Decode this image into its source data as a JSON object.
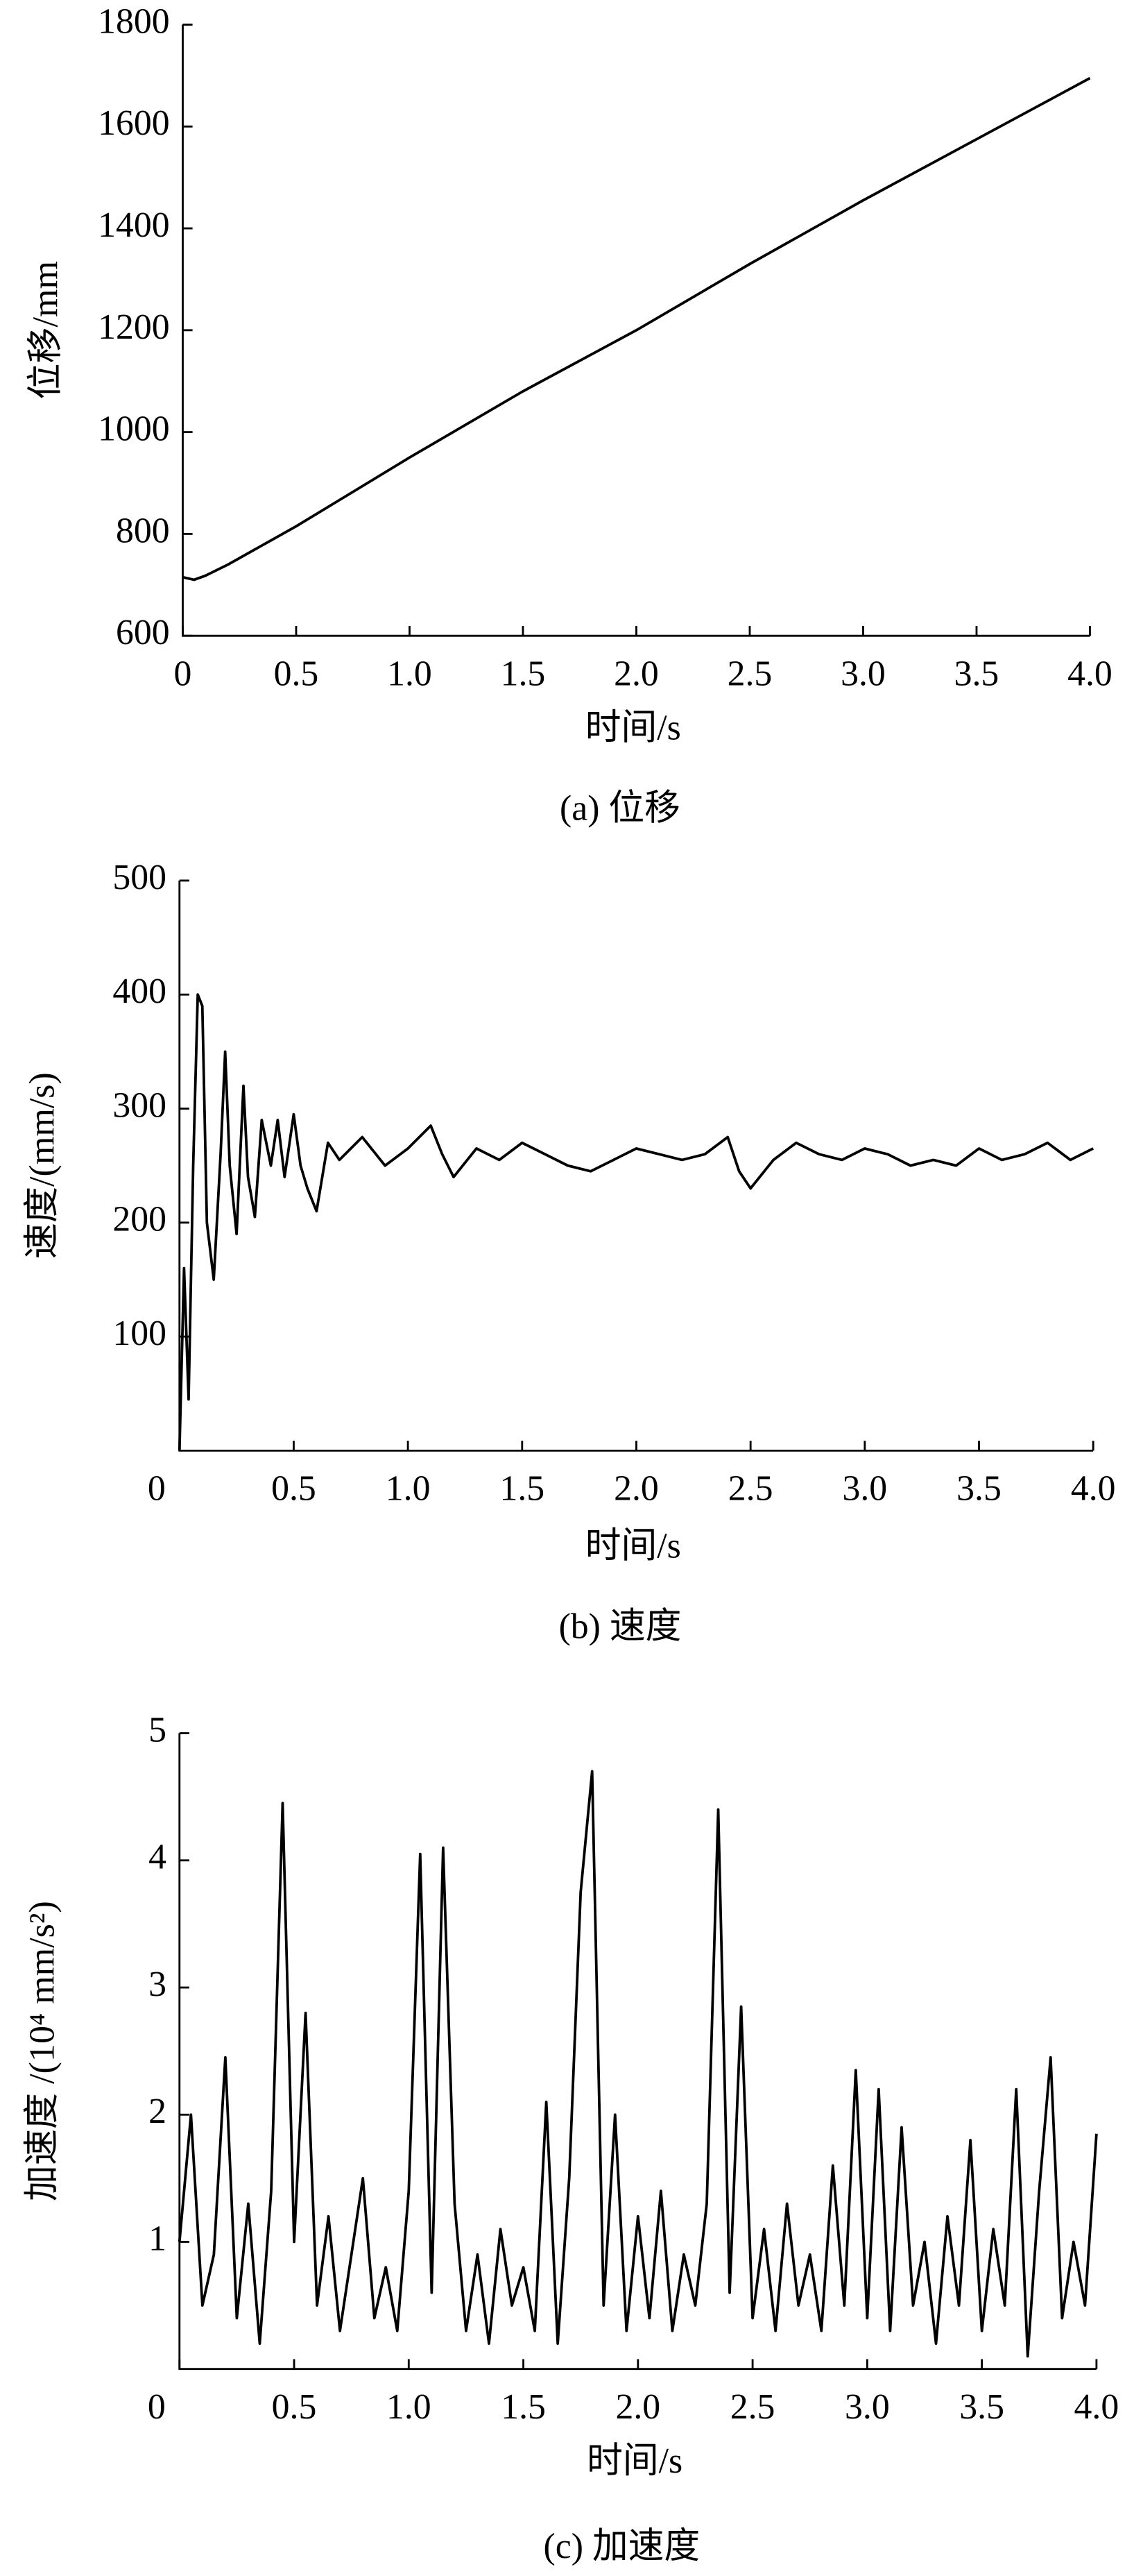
{
  "chart_data": [
    {
      "type": "line",
      "caption": "(a)  位移",
      "xlabel": "时间/s",
      "ylabel": "位移/mm",
      "color": "#000000",
      "x": [
        0,
        0.05,
        0.1,
        0.2,
        0.3,
        0.5,
        1.0,
        1.5,
        2.0,
        2.5,
        3.0,
        3.5,
        4.0
      ],
      "values": [
        715,
        710,
        718,
        740,
        765,
        815,
        950,
        1080,
        1200,
        1330,
        1455,
        1575,
        1695
      ],
      "xlim": [
        0,
        4
      ],
      "ylim": [
        600,
        1800
      ],
      "xticks": [
        0,
        0.5,
        {
          "value": 1,
          "label": "1.0"
        },
        1.5,
        {
          "value": 2,
          "label": "2.0"
        },
        2.5,
        {
          "value": 3,
          "label": "3.0"
        },
        3.5,
        {
          "value": 4,
          "label": "4.0"
        }
      ],
      "yticks": [
        600,
        800,
        1000,
        1200,
        1400,
        1600,
        1800
      ]
    },
    {
      "type": "line",
      "caption": "(b)  速度",
      "xlabel": "时间/s",
      "ylabel": "速度/(mm/s)",
      "color": "#000000",
      "x": [
        0,
        0.02,
        0.04,
        0.06,
        0.08,
        0.1,
        0.12,
        0.15,
        0.18,
        0.2,
        0.22,
        0.25,
        0.28,
        0.3,
        0.33,
        0.36,
        0.4,
        0.43,
        0.46,
        0.5,
        0.53,
        0.56,
        0.6,
        0.65,
        0.7,
        0.8,
        0.9,
        1.0,
        1.1,
        1.15,
        1.2,
        1.3,
        1.4,
        1.5,
        1.6,
        1.7,
        1.8,
        1.9,
        2.0,
        2.1,
        2.2,
        2.3,
        2.4,
        2.45,
        2.5,
        2.6,
        2.7,
        2.8,
        2.9,
        3.0,
        3.1,
        3.2,
        3.3,
        3.4,
        3.5,
        3.6,
        3.7,
        3.8,
        3.9,
        4.0
      ],
      "values": [
        0,
        160,
        45,
        250,
        400,
        390,
        200,
        150,
        260,
        350,
        250,
        190,
        320,
        240,
        205,
        290,
        250,
        290,
        240,
        295,
        250,
        230,
        210,
        270,
        255,
        275,
        250,
        265,
        285,
        260,
        240,
        265,
        255,
        270,
        260,
        250,
        245,
        255,
        265,
        260,
        255,
        260,
        275,
        245,
        230,
        255,
        270,
        260,
        255,
        265,
        260,
        250,
        255,
        250,
        265,
        255,
        260,
        270,
        255,
        265
      ],
      "xlim": [
        0,
        4
      ],
      "ylim": [
        0,
        500
      ],
      "xticks": [
        0,
        0.5,
        {
          "value": 1,
          "label": "1.0"
        },
        1.5,
        {
          "value": 2,
          "label": "2.0"
        },
        2.5,
        {
          "value": 3,
          "label": "3.0"
        },
        3.5,
        {
          "value": 4,
          "label": "4.0"
        }
      ],
      "yticks": [
        100,
        200,
        300,
        400,
        500
      ]
    },
    {
      "type": "line",
      "caption": "(c)  加速度",
      "xlabel": "时间/s",
      "ylabel": "加速度 /(10⁴ mm/s²)",
      "color": "#000000",
      "x": [
        0,
        0.05,
        0.1,
        0.15,
        0.2,
        0.25,
        0.3,
        0.35,
        0.4,
        0.45,
        0.5,
        0.55,
        0.6,
        0.65,
        0.7,
        0.75,
        0.8,
        0.85,
        0.9,
        0.95,
        1.0,
        1.05,
        1.1,
        1.15,
        1.2,
        1.25,
        1.3,
        1.35,
        1.4,
        1.45,
        1.5,
        1.55,
        1.6,
        1.65,
        1.7,
        1.75,
        1.8,
        1.85,
        1.9,
        1.95,
        2.0,
        2.05,
        2.1,
        2.15,
        2.2,
        2.25,
        2.3,
        2.35,
        2.4,
        2.45,
        2.5,
        2.55,
        2.6,
        2.65,
        2.7,
        2.75,
        2.8,
        2.85,
        2.9,
        2.95,
        3.0,
        3.05,
        3.1,
        3.15,
        3.2,
        3.25,
        3.3,
        3.35,
        3.4,
        3.45,
        3.5,
        3.55,
        3.6,
        3.65,
        3.7,
        3.75,
        3.8,
        3.85,
        3.9,
        3.95,
        4.0
      ],
      "values": [
        1.0,
        2.0,
        0.5,
        0.9,
        2.45,
        0.4,
        1.3,
        0.2,
        1.4,
        4.45,
        1.0,
        2.8,
        0.5,
        1.2,
        0.3,
        0.9,
        1.5,
        0.4,
        0.8,
        0.3,
        1.4,
        4.05,
        0.6,
        4.1,
        1.3,
        0.3,
        0.9,
        0.2,
        1.1,
        0.5,
        0.8,
        0.3,
        2.1,
        0.2,
        1.5,
        3.75,
        4.7,
        0.5,
        2.0,
        0.3,
        1.2,
        0.4,
        1.4,
        0.3,
        0.9,
        0.5,
        1.3,
        4.4,
        0.6,
        2.85,
        0.4,
        1.1,
        0.3,
        1.3,
        0.5,
        0.9,
        0.3,
        1.6,
        0.5,
        2.35,
        0.4,
        2.2,
        0.3,
        1.9,
        0.5,
        1.0,
        0.2,
        1.2,
        0.5,
        1.8,
        0.3,
        1.1,
        0.5,
        2.2,
        0.1,
        1.4,
        2.45,
        0.4,
        1.0,
        0.5,
        1.85
      ],
      "xlim": [
        0,
        4
      ],
      "ylim": [
        0,
        5
      ],
      "xticks": [
        0,
        0.5,
        {
          "value": 1,
          "label": "1.0"
        },
        1.5,
        {
          "value": 2,
          "label": "2.0"
        },
        2.5,
        {
          "value": 3,
          "label": "3.0"
        },
        3.5,
        {
          "value": 4,
          "label": "4.0"
        }
      ],
      "yticks": [
        1,
        2,
        3,
        4,
        5
      ]
    }
  ]
}
